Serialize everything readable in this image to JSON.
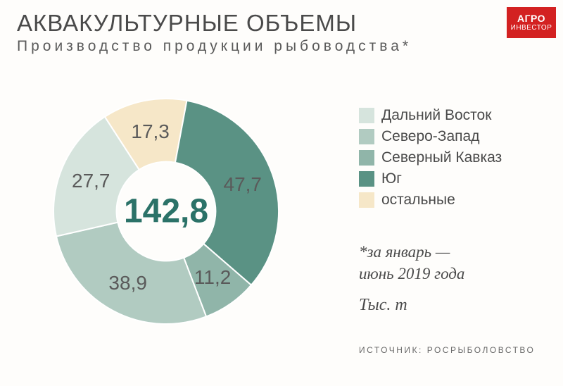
{
  "title": "АКВАКУЛЬТУРНЫЕ ОБЪЕМЫ",
  "subtitle": "Производство продукции рыбоводства*",
  "logo": {
    "line1": "АГРО",
    "line2": "ИНВЕСТОР",
    "bg": "#d32121",
    "fg": "#ffffff"
  },
  "background_color": "#fefdfb",
  "center_value": "142,8",
  "center_value_color": "#2b7268",
  "chart": {
    "type": "donut",
    "inner_radius_pct": 44,
    "outer_radius_pct": 100,
    "start_angle_deg": -33,
    "slice_label_fontsize": 28,
    "slices": [
      {
        "label": "17,3",
        "value": 17.3,
        "color": "#f6e7c8",
        "legend": "остальные"
      },
      {
        "label": "47,7",
        "value": 47.7,
        "color": "#5a9284",
        "legend": "Юг"
      },
      {
        "label": "11,2",
        "value": 11.2,
        "color": "#90b5a9",
        "legend": "Северный Кавказ"
      },
      {
        "label": "38,9",
        "value": 38.9,
        "color": "#b1cbc1",
        "legend": "Северо-Запад"
      },
      {
        "label": "27,7",
        "value": 27.7,
        "color": "#d6e4dd",
        "legend": "Дальний Восток"
      }
    ],
    "legend_order": [
      4,
      3,
      2,
      1,
      0
    ]
  },
  "note_line1": "*за январь —",
  "note_line2": "июнь 2019 года",
  "unit": "Тыс. т",
  "source": "ИСТОЧНИК: РОСРЫБОЛОВСТВО",
  "legend_swatch_size": 22,
  "legend_fontsize": 21,
  "title_fontsize": 33,
  "subtitle_fontsize": 21
}
